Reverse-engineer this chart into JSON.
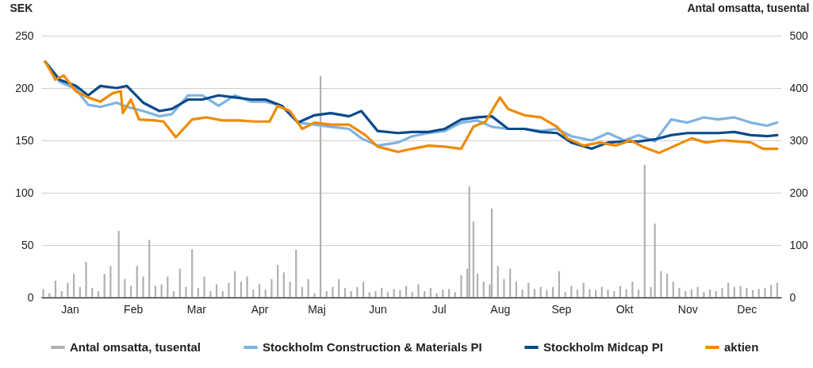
{
  "chart_data": {
    "type": "line",
    "ylabel": "SEK",
    "y2label": "Antal omsatta, tusental",
    "xlim": [
      "--01-02",
      "--12-31"
    ],
    "xticks": [
      {
        "value": "--01-16",
        "label": "Jan"
      },
      {
        "value": "--02-16",
        "label": "Feb"
      },
      {
        "value": "--03-19",
        "label": "Mar"
      },
      {
        "value": "--04-19",
        "label": "Apr"
      },
      {
        "value": "--05-17",
        "label": "Maj"
      },
      {
        "value": "--06-16",
        "label": "Jun"
      },
      {
        "value": "--07-16",
        "label": "Jul"
      },
      {
        "value": "--08-15",
        "label": "Aug"
      },
      {
        "value": "--09-14",
        "label": "Sep"
      },
      {
        "value": "--10-15",
        "label": "Okt"
      },
      {
        "value": "--11-15",
        "label": "Nov"
      },
      {
        "value": "--12-14",
        "label": "Dec"
      }
    ],
    "ylim": [
      0,
      250
    ],
    "yticks": [
      0,
      50,
      100,
      150,
      200,
      250
    ],
    "y2lim": [
      0,
      500
    ],
    "y2ticks": [
      0,
      100,
      200,
      300,
      400,
      500
    ],
    "grid": "y",
    "legend": "bottom",
    "marker": "none",
    "line_style": "solid",
    "series": [
      {
        "name": "Antal omsatta, tusental",
        "type": "bar",
        "axis": "y2",
        "color": "#b0b0b0",
        "x": [
          "--01-03",
          "--01-06",
          "--01-09",
          "--01-12",
          "--01-15",
          "--01-18",
          "--01-21",
          "--01-24",
          "--01-27",
          "--01-30",
          "--02-02",
          "--02-05",
          "--02-09",
          "--02-12",
          "--02-15",
          "--02-18",
          "--02-21",
          "--02-24",
          "--02-27",
          "--03-02",
          "--03-05",
          "--03-08",
          "--03-11",
          "--03-14",
          "--03-17",
          "--03-20",
          "--03-23",
          "--03-26",
          "--03-29",
          "--04-01",
          "--04-04",
          "--04-07",
          "--04-10",
          "--04-13",
          "--04-16",
          "--04-19",
          "--04-22",
          "--04-25",
          "--04-28",
          "--05-01",
          "--05-04",
          "--05-07",
          "--05-10",
          "--05-13",
          "--05-16",
          "--05-19",
          "--05-22",
          "--05-25",
          "--05-28",
          "--05-31",
          "--06-03",
          "--06-06",
          "--06-09",
          "--06-12",
          "--06-15",
          "--06-18",
          "--06-21",
          "--06-24",
          "--06-27",
          "--06-30",
          "--07-03",
          "--07-06",
          "--07-09",
          "--07-12",
          "--07-15",
          "--07-18",
          "--07-21",
          "--07-24",
          "--07-27",
          "--07-30",
          "--07-31",
          "--08-02",
          "--08-04",
          "--08-07",
          "--08-10",
          "--08-11",
          "--08-14",
          "--08-17",
          "--08-20",
          "--08-23",
          "--08-26",
          "--08-29",
          "--09-01",
          "--09-04",
          "--09-07",
          "--09-10",
          "--09-13",
          "--09-16",
          "--09-19",
          "--09-22",
          "--09-25",
          "--09-28",
          "--10-01",
          "--10-04",
          "--10-07",
          "--10-10",
          "--10-13",
          "--10-16",
          "--10-19",
          "--10-22",
          "--10-25",
          "--10-28",
          "--10-30",
          "--11-02",
          "--11-05",
          "--11-08",
          "--11-11",
          "--11-14",
          "--11-17",
          "--11-20",
          "--11-23",
          "--11-26",
          "--11-29",
          "--12-02",
          "--12-05",
          "--12-08",
          "--12-11",
          "--12-14",
          "--12-17",
          "--12-20",
          "--12-23",
          "--12-26",
          "--12-29"
        ],
        "values": [
          16,
          8,
          32,
          12,
          28,
          45,
          20,
          68,
          18,
          12,
          45,
          60,
          127,
          35,
          22,
          60,
          40,
          110,
          22,
          25,
          40,
          12,
          55,
          20,
          92,
          18,
          40,
          12,
          25,
          12,
          28,
          50,
          30,
          40,
          15,
          26,
          15,
          35,
          62,
          48,
          30,
          91,
          20,
          35,
          8,
          423,
          12,
          20,
          35,
          18,
          12,
          20,
          30,
          10,
          12,
          18,
          10,
          16,
          14,
          22,
          10,
          25,
          12,
          18,
          8,
          15,
          16,
          10,
          42,
          55,
          212,
          145,
          45,
          30,
          25,
          170,
          60,
          35,
          55,
          30,
          15,
          28,
          16,
          20,
          14,
          20,
          50,
          10,
          22,
          15,
          28,
          16,
          14,
          20,
          15,
          12,
          22,
          16,
          30,
          15,
          253,
          20,
          141,
          50,
          45,
          30,
          18,
          12,
          15,
          20,
          10,
          15,
          12,
          18,
          28,
          20,
          22,
          18,
          14,
          16,
          18,
          24,
          28
        ]
      },
      {
        "name": "Stockholm Construction & Materials PI",
        "color": "#7eb3e2",
        "x": [
          "--01-04",
          "--01-11",
          "--01-19",
          "--01-25",
          "--01-31",
          "--02-08",
          "--02-13",
          "--02-21",
          "--03-01",
          "--03-07",
          "--03-15",
          "--03-22",
          "--03-30",
          "--04-07",
          "--04-15",
          "--04-22",
          "--04-30",
          "--05-08",
          "--05-16",
          "--05-24",
          "--06-02",
          "--06-08",
          "--06-16",
          "--06-26",
          "--07-03",
          "--07-11",
          "--07-19",
          "--07-27",
          "--08-04",
          "--08-11",
          "--08-19",
          "--08-27",
          "--09-04",
          "--09-12",
          "--09-19",
          "--09-29",
          "--10-07",
          "--10-15",
          "--10-22",
          "--10-30",
          "--11-07",
          "--11-15",
          "--11-23",
          "--11-30",
          "--12-08",
          "--12-16",
          "--12-24",
          "--12-29"
        ],
        "values": [
          225,
          206,
          199,
          184,
          182,
          186,
          182,
          178,
          173,
          175,
          193,
          193,
          183,
          193,
          187,
          187,
          183,
          167,
          165,
          163,
          161,
          152,
          145,
          148,
          154,
          157,
          159,
          167,
          169,
          163,
          161,
          161,
          159,
          161,
          154,
          150,
          157,
          150,
          155,
          149,
          170,
          167,
          172,
          170,
          172,
          167,
          164,
          167
        ]
      },
      {
        "name": "Stockholm Midcap PI",
        "color": "#0b4a8c",
        "x": [
          "--01-04",
          "--01-11",
          "--01-19",
          "--01-25",
          "--01-31",
          "--02-08",
          "--02-13",
          "--02-21",
          "--03-01",
          "--03-07",
          "--03-15",
          "--03-22",
          "--03-30",
          "--04-07",
          "--04-15",
          "--04-22",
          "--04-30",
          "--05-08",
          "--05-16",
          "--05-24",
          "--06-02",
          "--06-08",
          "--06-16",
          "--06-26",
          "--07-03",
          "--07-11",
          "--07-19",
          "--07-27",
          "--08-04",
          "--08-11",
          "--08-19",
          "--08-27",
          "--09-04",
          "--09-12",
          "--09-19",
          "--09-29",
          "--10-07",
          "--10-15",
          "--10-22",
          "--10-30",
          "--11-07",
          "--11-15",
          "--11-23",
          "--11-30",
          "--12-08",
          "--12-16",
          "--12-24",
          "--12-29"
        ],
        "values": [
          225,
          208,
          202,
          193,
          202,
          200,
          202,
          186,
          178,
          180,
          189,
          189,
          193,
          191,
          189,
          189,
          183,
          167,
          174,
          176,
          173,
          178,
          159,
          157,
          158,
          158,
          161,
          170,
          172,
          173,
          161,
          161,
          158,
          157,
          148,
          142,
          148,
          149,
          149,
          151,
          155,
          157,
          157,
          157,
          158,
          155,
          154,
          155
        ]
      },
      {
        "name": "aktien",
        "color": "#f08a00",
        "x": [
          "--01-04",
          "--01-09",
          "--01-13",
          "--01-19",
          "--01-25",
          "--01-31",
          "--02-06",
          "--02-10",
          "--02-11",
          "--02-15",
          "--02-19",
          "--02-27",
          "--03-03",
          "--03-09",
          "--03-17",
          "--03-24",
          "--04-01",
          "--04-09",
          "--04-17",
          "--04-24",
          "--04-28",
          "--05-04",
          "--05-10",
          "--05-16",
          "--05-24",
          "--06-02",
          "--06-10",
          "--06-16",
          "--06-26",
          "--07-03",
          "--07-11",
          "--07-19",
          "--07-27",
          "--08-02",
          "--08-08",
          "--08-11",
          "--08-15",
          "--08-19",
          "--08-27",
          "--09-04",
          "--09-12",
          "--09-17",
          "--09-25",
          "--10-03",
          "--10-11",
          "--10-18",
          "--10-24",
          "--11-01",
          "--11-09",
          "--11-17",
          "--11-24",
          "--12-02",
          "--12-10",
          "--12-16",
          "--12-22",
          "--12-29"
        ],
        "values": [
          225,
          208,
          212,
          197,
          191,
          187,
          195,
          197,
          176,
          189,
          170,
          169,
          168,
          153,
          170,
          172,
          169,
          169,
          168,
          168,
          183,
          178,
          161,
          167,
          165,
          165,
          155,
          144,
          139,
          142,
          145,
          144,
          142,
          163,
          168,
          178,
          191,
          180,
          174,
          172,
          163,
          152,
          145,
          148,
          145,
          150,
          144,
          138,
          145,
          152,
          148,
          150,
          149,
          148,
          142,
          142
        ]
      }
    ]
  }
}
